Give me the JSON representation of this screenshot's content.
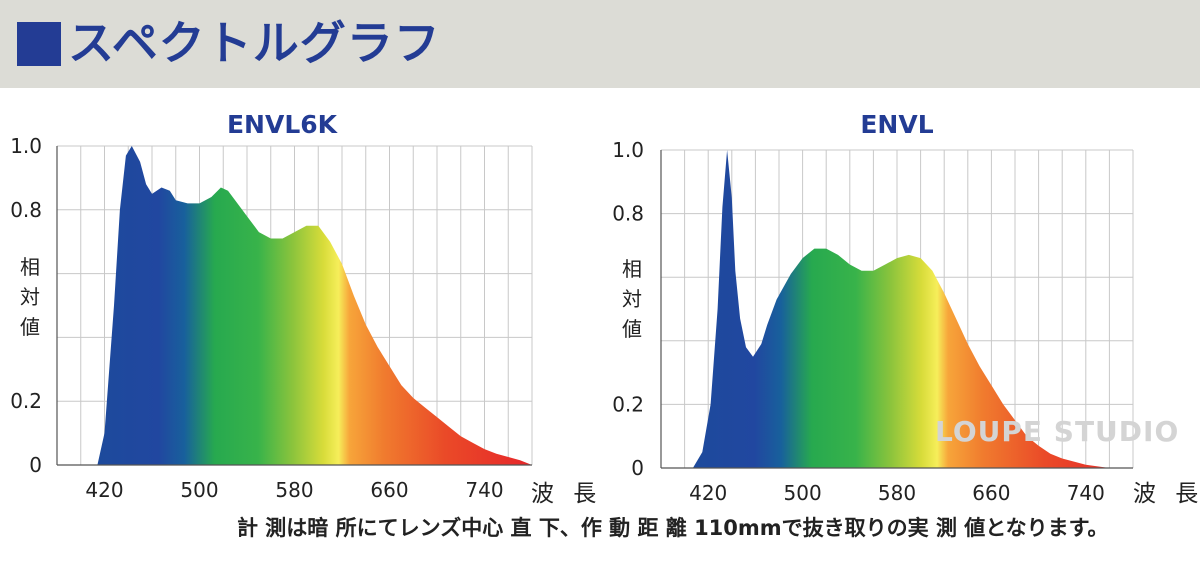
{
  "header": {
    "title": "スペクトルグラフ",
    "accent": "#233c94",
    "background": "#dcdcd6"
  },
  "footnote": "計 測は暗 所にてレンズ中心 直 下、作 動 距 離 110mmで抜き取りの実 測 値となります。",
  "watermark": "LOUPE STUDIO",
  "chart_data": [
    {
      "type": "area",
      "title": "ENVL6K",
      "xlabel": "波 長",
      "ylabel": "相対値",
      "xlim": [
        380,
        780
      ],
      "ylim": [
        0,
        1.0
      ],
      "xticks": [
        "420",
        "500",
        "580",
        "660",
        "740"
      ],
      "yticks": [
        "0",
        "0.2",
        "0.8",
        "1.0"
      ],
      "grid": true,
      "fill": "visible-spectrum gradient",
      "x": [
        414,
        420,
        428,
        433,
        438,
        443,
        450,
        455,
        460,
        468,
        475,
        480,
        490,
        500,
        510,
        518,
        524,
        530,
        540,
        550,
        560,
        570,
        580,
        590,
        600,
        610,
        620,
        630,
        640,
        650,
        660,
        670,
        680,
        690,
        700,
        710,
        720,
        730,
        740,
        750,
        760,
        770,
        780
      ],
      "y": [
        0.0,
        0.1,
        0.5,
        0.8,
        0.97,
        1.0,
        0.95,
        0.88,
        0.85,
        0.87,
        0.86,
        0.83,
        0.82,
        0.82,
        0.84,
        0.87,
        0.86,
        0.83,
        0.78,
        0.73,
        0.71,
        0.71,
        0.73,
        0.75,
        0.75,
        0.7,
        0.63,
        0.53,
        0.44,
        0.37,
        0.31,
        0.25,
        0.21,
        0.18,
        0.15,
        0.12,
        0.09,
        0.07,
        0.05,
        0.035,
        0.025,
        0.015,
        0.0
      ]
    },
    {
      "type": "area",
      "title": "ENVL",
      "xlabel": "波 長",
      "ylabel": "相対値",
      "xlim": [
        380,
        780
      ],
      "ylim": [
        0,
        1.0
      ],
      "xticks": [
        "420",
        "500",
        "580",
        "660",
        "740"
      ],
      "yticks": [
        "0",
        "0.2",
        "0.8",
        "1.0"
      ],
      "grid": true,
      "fill": "visible-spectrum gradient",
      "x": [
        407,
        415,
        422,
        428,
        432,
        436,
        440,
        443,
        447,
        452,
        458,
        465,
        470,
        478,
        490,
        500,
        510,
        520,
        530,
        540,
        550,
        560,
        570,
        580,
        590,
        600,
        610,
        620,
        630,
        640,
        650,
        660,
        670,
        680,
        690,
        700,
        710,
        720,
        730,
        740,
        750,
        760,
        770,
        780
      ],
      "y": [
        0.0,
        0.05,
        0.2,
        0.5,
        0.82,
        1.0,
        0.85,
        0.62,
        0.47,
        0.38,
        0.35,
        0.39,
        0.45,
        0.53,
        0.61,
        0.66,
        0.69,
        0.69,
        0.67,
        0.64,
        0.62,
        0.62,
        0.64,
        0.66,
        0.67,
        0.66,
        0.62,
        0.55,
        0.47,
        0.39,
        0.32,
        0.26,
        0.2,
        0.15,
        0.1,
        0.07,
        0.045,
        0.03,
        0.02,
        0.01,
        0.005,
        0.0,
        0.0,
        0.0
      ]
    }
  ]
}
